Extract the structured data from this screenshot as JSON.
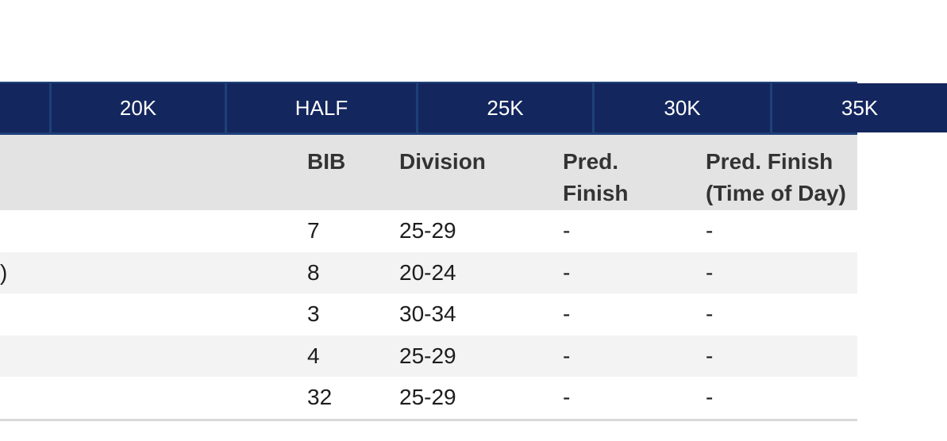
{
  "checkpoint_bar": {
    "segments": [
      {
        "label": ""
      },
      {
        "label": "20K"
      },
      {
        "label": "HALF"
      },
      {
        "label": "25K"
      },
      {
        "label": "30K"
      },
      {
        "label": "35K"
      }
    ]
  },
  "table": {
    "columns": [
      {
        "line1": "BIB",
        "line2": ""
      },
      {
        "line1": "Division",
        "line2": ""
      },
      {
        "line1": "Pred.",
        "line2": "Finish"
      },
      {
        "line1": "Pred. Finish",
        "line2": "(Time of Day)"
      }
    ],
    "rows": [
      {
        "name_fragment": "",
        "bib": "7",
        "division": "25-29",
        "pred_finish": "-",
        "pred_finish_time_of_day": "-"
      },
      {
        "name_fragment": ")",
        "bib": "8",
        "division": "20-24",
        "pred_finish": "-",
        "pred_finish_time_of_day": "-"
      },
      {
        "name_fragment": "",
        "bib": "3",
        "division": "30-34",
        "pred_finish": "-",
        "pred_finish_time_of_day": "-"
      },
      {
        "name_fragment": "",
        "bib": "4",
        "division": "25-29",
        "pred_finish": "-",
        "pred_finish_time_of_day": "-"
      },
      {
        "name_fragment": "",
        "bib": "32",
        "division": "25-29",
        "pred_finish": "-",
        "pred_finish_time_of_day": "-"
      }
    ]
  },
  "colors": {
    "checkpoint_cell_navy": "#14265e",
    "checkpoint_separator_navy": "#1e4078",
    "column_header_gray": "#e3e3e3",
    "row_alt_gray": "#f3f3f3",
    "bottom_border_gray": "#d9d9d9"
  }
}
